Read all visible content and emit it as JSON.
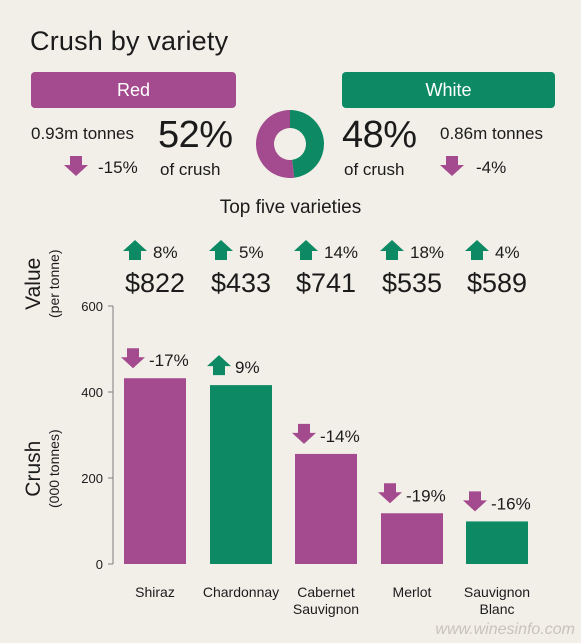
{
  "title": "Crush by variety",
  "red": {
    "label": "Red",
    "tonnes": "0.93m tonnes",
    "change": "-15%",
    "percent": "52%",
    "percent_label": "of crush",
    "color": "#a44a8e"
  },
  "white": {
    "label": "White",
    "tonnes": "0.86m tonnes",
    "change": "-4%",
    "percent": "48%",
    "percent_label": "of crush",
    "color": "#0d8a63"
  },
  "subheading": "Top five varieties",
  "value_axis": {
    "label": "Value",
    "unit": "(per tonne)"
  },
  "crush_axis": {
    "label": "Crush",
    "unit": "(000 tonnes)"
  },
  "watermark": "www.winesinfo.com",
  "chart_data": {
    "type": "bar",
    "categories": [
      "Shiraz",
      "Chardonnay",
      "Cabernet Sauvignon",
      "Merlot",
      "Sauvignon Blanc"
    ],
    "category_lines": [
      [
        "Shiraz"
      ],
      [
        "Chardonnay"
      ],
      [
        "Cabernet",
        "Sauvignon"
      ],
      [
        "Merlot"
      ],
      [
        "Sauvignon",
        "Blanc"
      ]
    ],
    "values": [
      432,
      416,
      256,
      118,
      99
    ],
    "colors": [
      "#a44a8e",
      "#0d8a63",
      "#a44a8e",
      "#a44a8e",
      "#0d8a63"
    ],
    "crush_change": [
      "-17%",
      "9%",
      "-14%",
      "-19%",
      "-16%"
    ],
    "crush_direction": [
      "down",
      "up",
      "down",
      "down",
      "down"
    ],
    "value_per_tonne": [
      "$822",
      "$433",
      "$741",
      "$535",
      "$589"
    ],
    "value_change": [
      "8%",
      "5%",
      "14%",
      "18%",
      "4%"
    ],
    "value_direction": [
      "up",
      "up",
      "up",
      "up",
      "up"
    ],
    "ylim": [
      0,
      600
    ],
    "yticks": [
      0,
      200,
      400,
      600
    ],
    "donut": {
      "red_share": 52,
      "white_share": 48
    }
  }
}
